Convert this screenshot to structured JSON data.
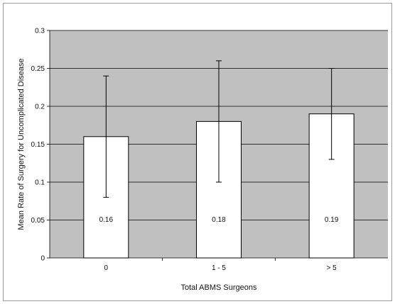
{
  "chart_data": {
    "type": "bar",
    "title": "",
    "xlabel": "Total ABMS Surgeons",
    "ylabel": "Mean Rate of Surgery for Uncomplicated Disease",
    "categories": [
      "0",
      "1 - 5",
      "> 5"
    ],
    "series": [
      {
        "values": [
          0.16,
          0.18,
          0.19
        ],
        "data_labels": [
          "0.16",
          "0.18",
          "0.19"
        ],
        "error_low": [
          0.08,
          0.1,
          0.13
        ],
        "error_high": [
          0.24,
          0.26,
          0.25
        ]
      }
    ],
    "ylim": [
      0,
      0.3
    ],
    "yticks": [
      "0",
      "0.05",
      "0.1",
      "0.15",
      "0.2",
      "0.25",
      "0.3"
    ],
    "grid": true,
    "colors": {
      "plot_background": "#c0c0c0",
      "bar_fill": "#ffffff",
      "bar_stroke": "#000000",
      "gridline": "#000000"
    }
  }
}
